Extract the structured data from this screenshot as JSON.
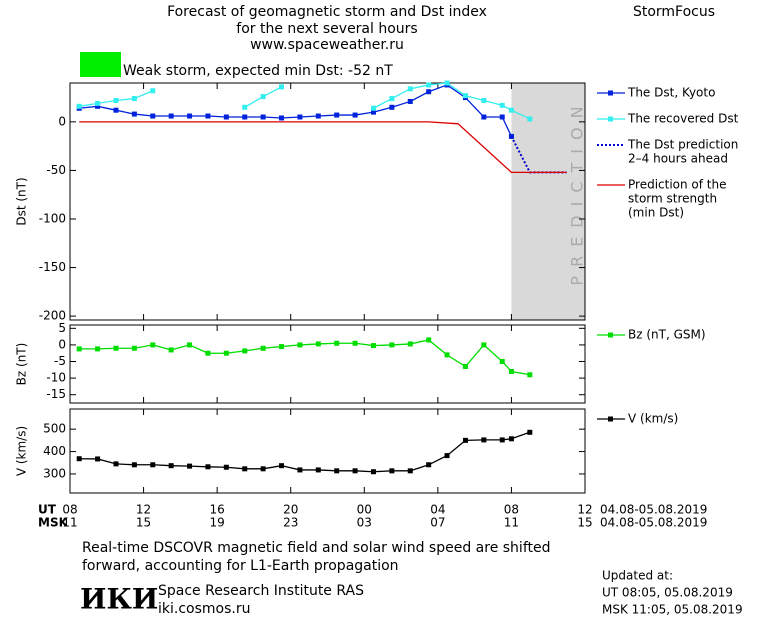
{
  "header": {
    "title_lines": [
      "Forecast of geomagnetic storm and Dst index",
      "for the next several hours",
      "www.spaceweather.ru"
    ],
    "brand": "StormFocus"
  },
  "status": {
    "color": "#00ee00",
    "text": "Weak storm, expected min Dst: -52 nT"
  },
  "chart_data": [
    {
      "type": "line",
      "ylabel": "Dst (nT)",
      "xlim": [
        0,
        28
      ],
      "ylim": [
        -204,
        40
      ],
      "yticks": [
        0,
        -50,
        -100,
        -150,
        -200
      ],
      "shade": {
        "xlim": [
          24,
          28
        ],
        "label": "PREDICTION",
        "color": "#d9d9d9"
      },
      "series": [
        {
          "name": [
            "The Dst, Kyoto"
          ],
          "color": "#0022dd",
          "style": "solid",
          "markers": true,
          "x": [
            0.5,
            1.5,
            2.5,
            3.5,
            4.5,
            5.5,
            6.5,
            7.5,
            8.5,
            9.5,
            10.5,
            11.5,
            12.5,
            13.5,
            14.5,
            15.5,
            16.5,
            17.5,
            18.5,
            19.5,
            20.5,
            21.5,
            22.5,
            23.5,
            24
          ],
          "values": [
            14,
            16,
            12,
            8,
            6,
            6,
            6,
            6,
            5,
            5,
            5,
            4,
            5,
            6,
            7,
            7,
            10,
            15,
            21,
            31,
            38,
            25,
            5,
            5,
            -15
          ]
        },
        {
          "name": [
            "The recovered Dst"
          ],
          "color": "#33eeee",
          "style": "solid",
          "markers": true,
          "x": [
            0.5,
            1.5,
            2.5,
            3.5,
            4.5,
            5.5,
            6.5,
            7.5,
            8.5,
            9.5,
            10.5,
            11.5,
            12.5,
            13.5,
            14.5,
            15.5,
            16.5,
            17.5,
            18.5,
            19.5,
            20.5,
            21.5,
            22.5,
            23.5,
            24,
            25
          ],
          "values": [
            16,
            19,
            22,
            24,
            32,
            null,
            null,
            null,
            null,
            15,
            26,
            36,
            null,
            null,
            null,
            null,
            14,
            24,
            34,
            38,
            40,
            27,
            22,
            17,
            12,
            3
          ]
        },
        {
          "name": [
            "The Dst prediction",
            "2–4 hours ahead"
          ],
          "color": "#0000cc",
          "style": "dotted",
          "markers": false,
          "x": [
            24,
            25,
            27
          ],
          "values": [
            -15,
            -52,
            -52
          ]
        },
        {
          "name": [
            "Prediction of the",
            "storm strength",
            "(min Dst)"
          ],
          "color": "#dd0000",
          "style": "solid",
          "markers": false,
          "x": [
            0.5,
            19.5,
            21.1,
            24,
            27
          ],
          "values": [
            0,
            0,
            -2,
            -52,
            -52
          ]
        }
      ]
    },
    {
      "type": "line",
      "ylabel": "Bz (nT)",
      "xlim": [
        0,
        28
      ],
      "ylim": [
        -17.5,
        6
      ],
      "yticks": [
        5,
        0,
        -5,
        -10,
        -15
      ],
      "series": [
        {
          "name": [
            "Bz (nT, GSM)"
          ],
          "color": "#00dd00",
          "style": "solid",
          "markers": true,
          "x": [
            0.5,
            1.5,
            2.5,
            3.5,
            4.5,
            5.5,
            6.5,
            7.5,
            8.5,
            9.5,
            10.5,
            11.5,
            12.5,
            13.5,
            14.5,
            15.5,
            16.5,
            17.5,
            18.5,
            19.5,
            20.5,
            21.5,
            22.5,
            23.5,
            24,
            25
          ],
          "values": [
            -1.2,
            -1.2,
            -1,
            -1,
            0,
            -1.5,
            0,
            -2.5,
            -2.5,
            -1.8,
            -1,
            -0.5,
            0,
            0.3,
            0.5,
            0.5,
            -0.2,
            0,
            0.3,
            1.5,
            -3,
            -6.5,
            0,
            -5,
            -8,
            -9
          ]
        }
      ]
    },
    {
      "type": "line",
      "ylabel": "V (km/s)",
      "xlim": [
        0,
        28
      ],
      "ylim": [
        215,
        590
      ],
      "yticks": [
        300,
        400,
        500
      ],
      "xticks": [
        {
          "value": 0,
          "label": "08"
        },
        {
          "value": 4,
          "label": "12"
        },
        {
          "value": 8,
          "label": "16"
        },
        {
          "value": 12,
          "label": "20"
        },
        {
          "value": 16,
          "label": "00"
        },
        {
          "value": 20,
          "label": "04"
        },
        {
          "value": 24,
          "label": "08"
        },
        {
          "value": 28,
          "label": "12"
        }
      ],
      "xticks2": [
        {
          "value": 0,
          "label": "11"
        },
        {
          "value": 4,
          "label": "15"
        },
        {
          "value": 8,
          "label": "19"
        },
        {
          "value": 12,
          "label": "23"
        },
        {
          "value": 16,
          "label": "03"
        },
        {
          "value": 20,
          "label": "07"
        },
        {
          "value": 24,
          "label": "11"
        },
        {
          "value": 28,
          "label": "15"
        }
      ],
      "xtick_rows": [
        "UT",
        "MSK"
      ],
      "xrange_labels": [
        "04.08-05.08.2019",
        "04.08-05.08.2019"
      ],
      "series": [
        {
          "name": [
            "V (km/s)"
          ],
          "color": "#000000",
          "style": "solid",
          "markers": true,
          "x": [
            0.5,
            1.5,
            2.5,
            3.5,
            4.5,
            5.5,
            6.5,
            7.5,
            8.5,
            9.5,
            10.5,
            11.5,
            12.5,
            13.5,
            14.5,
            15.5,
            16.5,
            17.5,
            18.5,
            19.5,
            20.5,
            21.5,
            22.5,
            23.5,
            24,
            25
          ],
          "values": [
            368,
            367,
            345,
            341,
            341,
            337,
            335,
            332,
            330,
            323,
            323,
            337,
            318,
            318,
            314,
            314,
            310,
            314,
            314,
            341,
            382,
            450,
            452,
            452,
            457,
            486
          ]
        }
      ]
    }
  ],
  "footer": {
    "note_lines": [
      "Real-time DSCOVR magnetic field and solar wind speed are shifted",
      "forward, accounting for L1-Earth propagation"
    ],
    "logo": "ИКИ",
    "institute": "Space Research Institute RAS",
    "site": "iki.cosmos.ru",
    "updated": [
      "Updated at:",
      "UT   08:05, 05.08.2019",
      "MSK 11:05, 05.08.2019"
    ]
  }
}
